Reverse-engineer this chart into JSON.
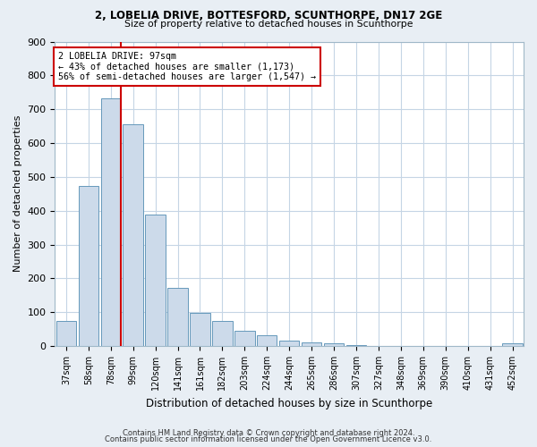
{
  "title1": "2, LOBELIA DRIVE, BOTTESFORD, SCUNTHORPE, DN17 2GE",
  "title2": "Size of property relative to detached houses in Scunthorpe",
  "xlabel": "Distribution of detached houses by size in Scunthorpe",
  "ylabel": "Number of detached properties",
  "bar_labels": [
    "37sqm",
    "58sqm",
    "78sqm",
    "99sqm",
    "120sqm",
    "141sqm",
    "161sqm",
    "182sqm",
    "203sqm",
    "224sqm",
    "244sqm",
    "265sqm",
    "286sqm",
    "307sqm",
    "327sqm",
    "348sqm",
    "369sqm",
    "390sqm",
    "410sqm",
    "431sqm",
    "452sqm"
  ],
  "bar_values": [
    75,
    472,
    733,
    655,
    388,
    173,
    97,
    74,
    46,
    33,
    16,
    10,
    9,
    3,
    1,
    0,
    0,
    0,
    0,
    0,
    7
  ],
  "bar_color": "#ccdaea",
  "bar_edge_color": "#6699bb",
  "property_line_color": "#cc0000",
  "ylim": [
    0,
    900
  ],
  "yticks": [
    0,
    100,
    200,
    300,
    400,
    500,
    600,
    700,
    800,
    900
  ],
  "annotation_text": "2 LOBELIA DRIVE: 97sqm\n← 43% of detached houses are smaller (1,173)\n56% of semi-detached houses are larger (1,547) →",
  "footer1": "Contains HM Land Registry data © Crown copyright and database right 2024.",
  "footer2": "Contains public sector information licensed under the Open Government Licence v3.0.",
  "bg_color": "#e8eef4",
  "plot_bg_color": "#ffffff",
  "grid_color": "#c5d5e5"
}
